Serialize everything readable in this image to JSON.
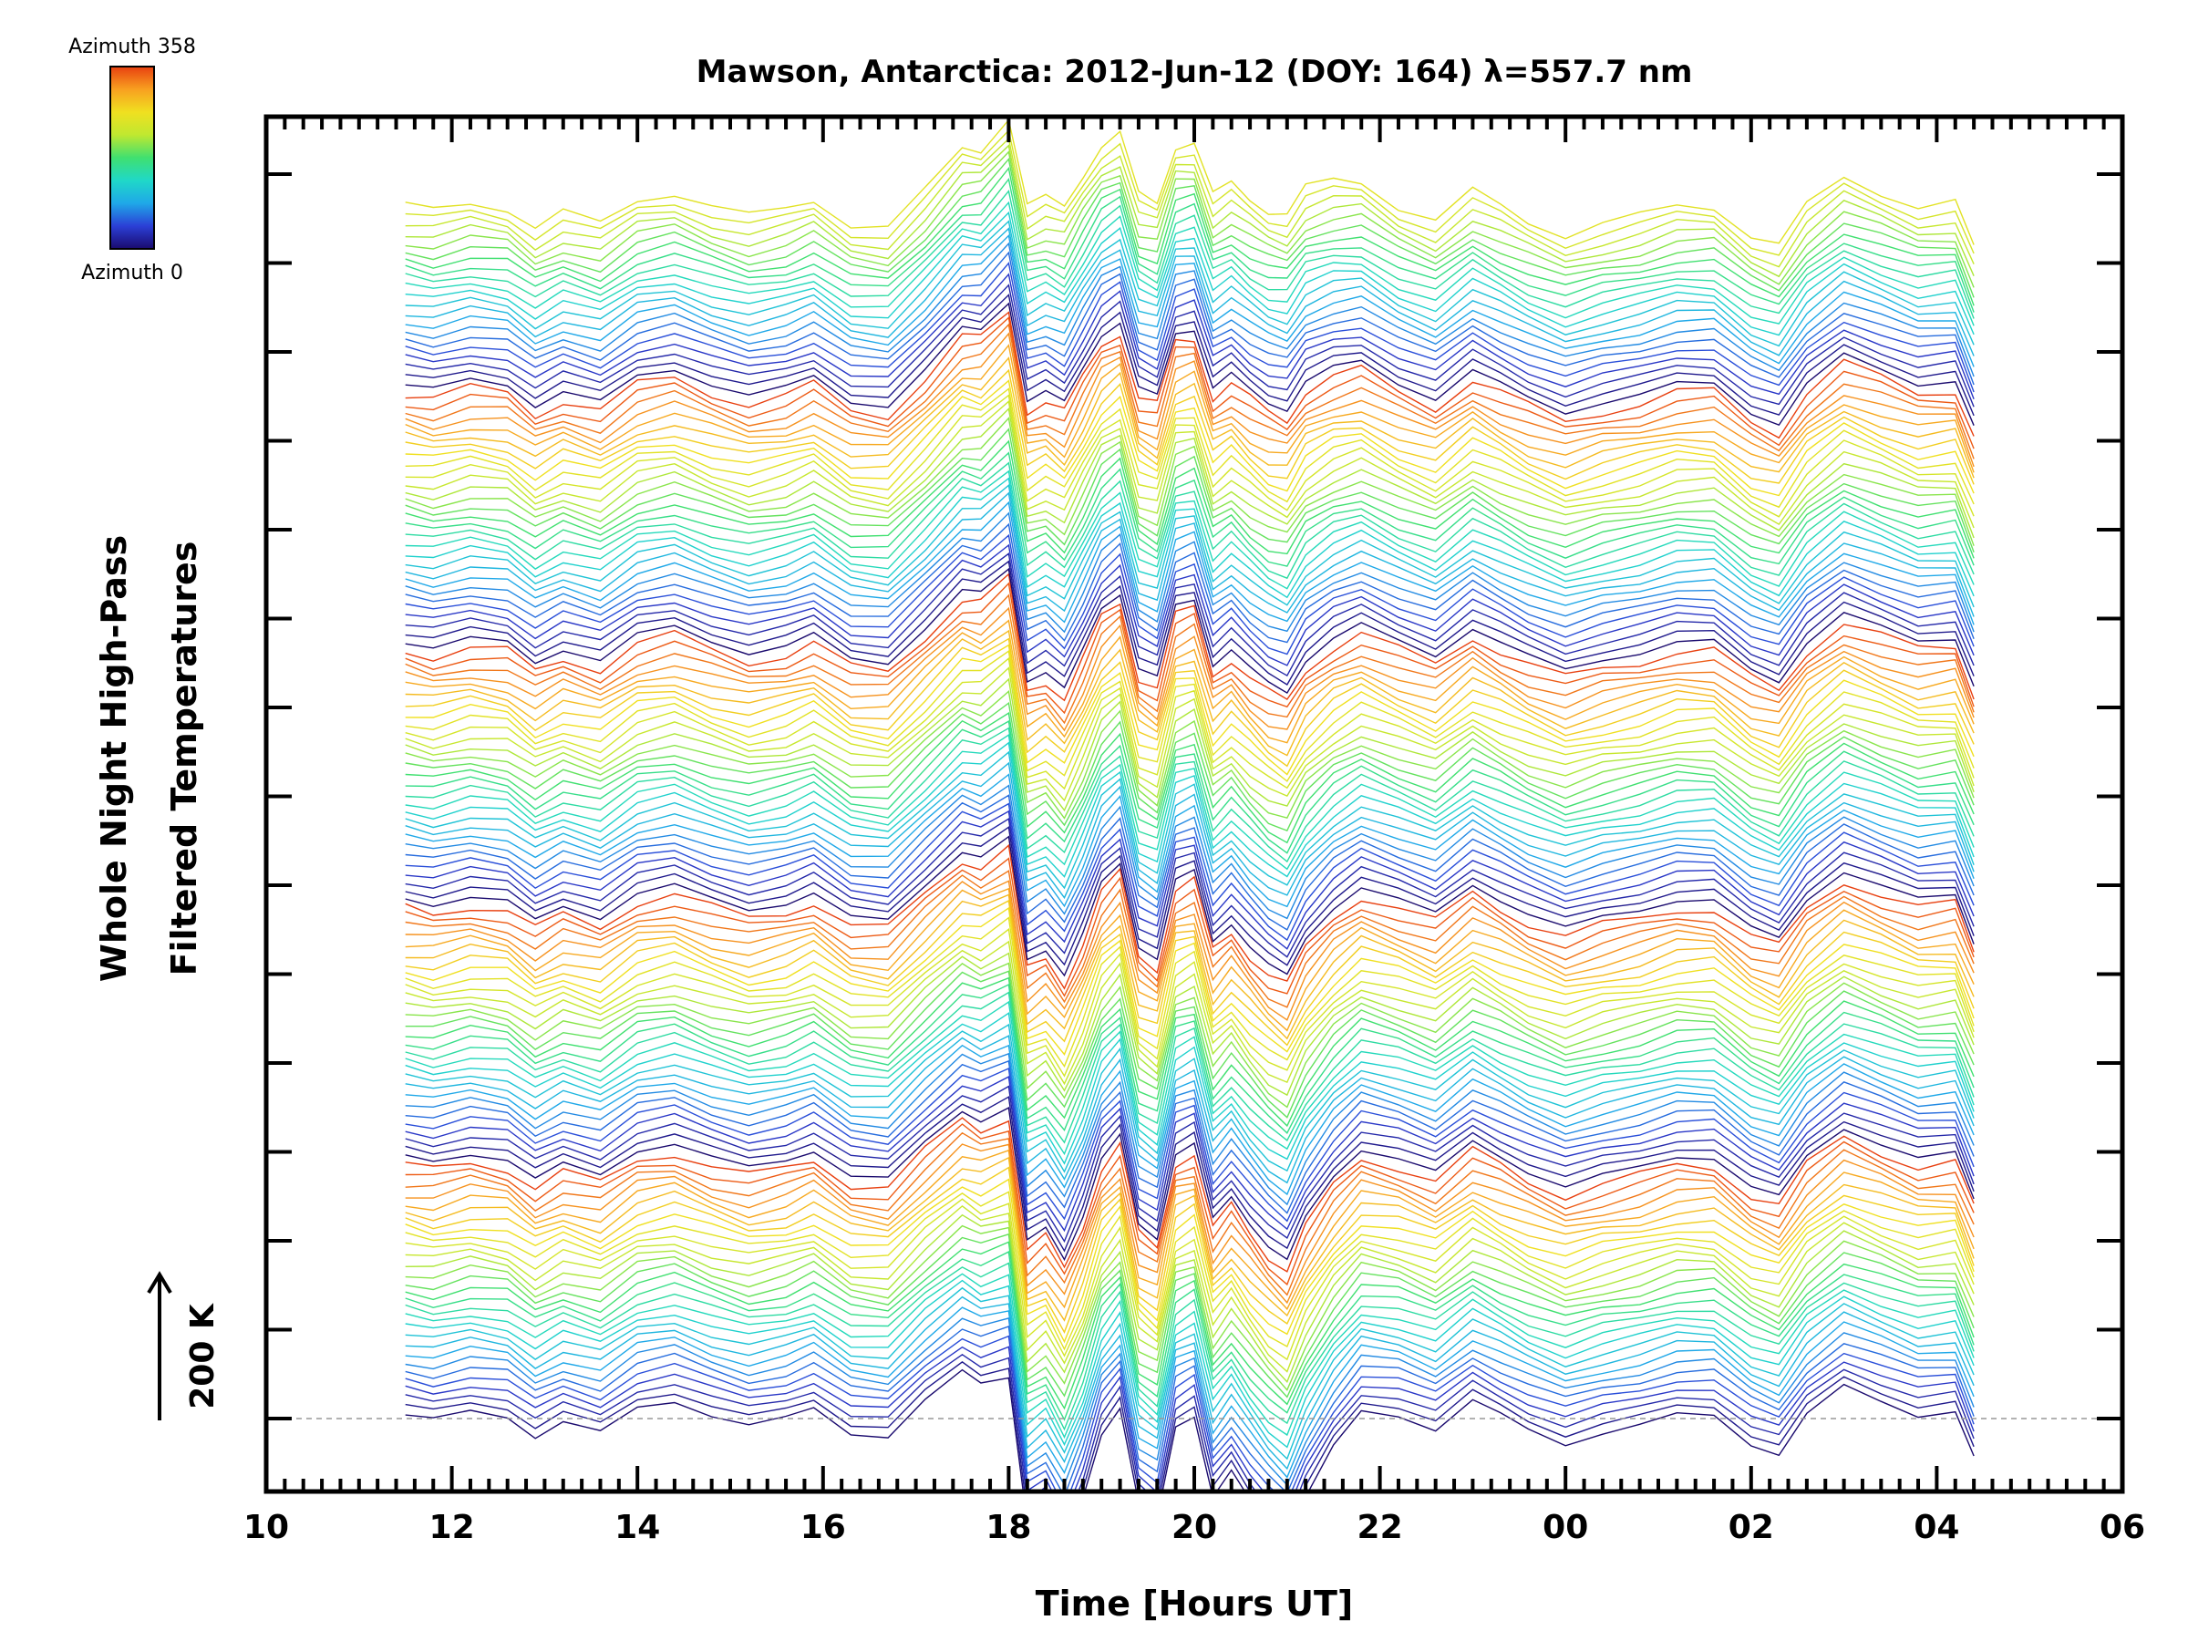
{
  "chart_data": {
    "type": "line",
    "title": "Mawson, Antarctica: 2012-Jun-12 (DOY: 164) λ=557.7 nm",
    "xlabel": "Time [Hours UT]",
    "ylabel_lines": [
      "Whole Night High-Pass",
      "Filtered Temperatures"
    ],
    "x_tick_labels": [
      "10",
      "12",
      "14",
      "16",
      "18",
      "20",
      "22",
      "00",
      "02",
      "04",
      "06"
    ],
    "xlim": [
      10,
      30
    ],
    "scale_bar_label": "200 K",
    "colorbar": {
      "top_label": "Azimuth 358",
      "bottom_label": "Azimuth 0",
      "colors": [
        "#1a0a6e",
        "#2b3fd6",
        "#1fa8e8",
        "#1fd8c8",
        "#40e070",
        "#c0e830",
        "#f0e020",
        "#f8a020",
        "#e84010"
      ]
    },
    "series_count": 137,
    "series_per_azimuth_sweep": 29,
    "azimuth_range_deg": [
      0,
      358
    ],
    "x": [
      11.5,
      11.8,
      12.2,
      12.6,
      12.9,
      13.2,
      13.6,
      14.0,
      14.4,
      14.8,
      15.2,
      15.6,
      15.9,
      16.3,
      16.7,
      17.1,
      17.5,
      17.7,
      18.0,
      18.2,
      18.4,
      18.6,
      18.8,
      19.0,
      19.2,
      19.4,
      19.6,
      19.8,
      20.0,
      20.2,
      20.4,
      20.6,
      20.8,
      21.0,
      21.2,
      21.5,
      21.8,
      22.2,
      22.6,
      23.0,
      23.3,
      23.6,
      24.0,
      24.4,
      24.8,
      25.2,
      25.6,
      26.0,
      26.3,
      26.6,
      27.0,
      27.4,
      27.8,
      28.2,
      28.4
    ],
    "base_profile_K": [
      5,
      -2,
      10,
      3,
      -25,
      -5,
      -20,
      15,
      25,
      5,
      -10,
      0,
      15,
      -20,
      -25,
      25,
      65,
      50,
      60,
      -145,
      -125,
      -175,
      -110,
      -20,
      15,
      -120,
      -140,
      -10,
      5,
      -110,
      -75,
      -115,
      -150,
      -175,
      -110,
      -40,
      10,
      5,
      -15,
      25,
      5,
      -15,
      -35,
      -20,
      -10,
      5,
      5,
      -35,
      -50,
      5,
      45,
      25,
      5,
      10,
      -55
    ],
    "series_modulation_K": [
      0,
      0,
      0,
      0,
      0,
      0,
      0,
      0,
      0,
      0,
      0,
      0,
      0,
      0,
      0,
      0,
      20,
      35,
      70,
      150,
      140,
      180,
      160,
      110,
      90,
      140,
      150,
      100,
      90,
      130,
      110,
      130,
      150,
      170,
      140,
      80,
      30,
      0,
      0,
      0,
      0,
      0,
      0,
      0,
      0,
      0,
      0,
      0,
      0,
      0,
      0,
      0,
      0,
      0,
      0
    ]
  }
}
